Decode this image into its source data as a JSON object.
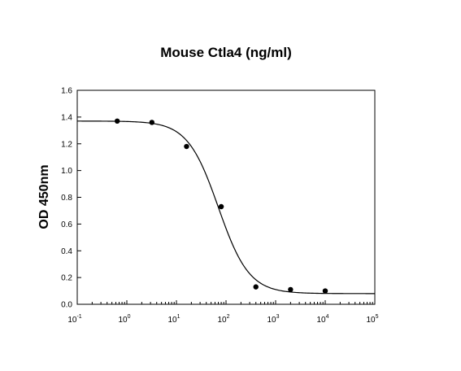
{
  "chart_data": {
    "type": "scatter",
    "title": "Mouse Ctla4 (ng/ml)",
    "xlabel": "",
    "ylabel": "OD 450nm",
    "x_scale": "log10",
    "xlim": [
      0.1,
      100000
    ],
    "ylim": [
      0,
      1.6
    ],
    "y_ticks": [
      "0.0",
      "0.2",
      "0.4",
      "0.6",
      "0.8",
      "1.0",
      "1.2",
      "1.4",
      "1.6"
    ],
    "x_ticks": [
      {
        "base": "10",
        "exp": "-1"
      },
      {
        "base": "10",
        "exp": "0"
      },
      {
        "base": "10",
        "exp": "1"
      },
      {
        "base": "10",
        "exp": "2"
      },
      {
        "base": "10",
        "exp": "3"
      },
      {
        "base": "10",
        "exp": "4"
      },
      {
        "base": "10",
        "exp": "5"
      }
    ],
    "grid": false,
    "legend": "none",
    "points": {
      "x": [
        0.64,
        3.2,
        16,
        80,
        400,
        2000,
        10000
      ],
      "y": [
        1.37,
        1.36,
        1.18,
        0.73,
        0.13,
        0.11,
        0.1
      ]
    },
    "fit_curve": {
      "model": "4-parameter logistic",
      "top": 1.37,
      "bottom": 0.08,
      "ec50": 70,
      "hill": 1.4
    },
    "colors": {
      "points": "#000000",
      "curve": "#000000",
      "axes": "#000000"
    }
  }
}
